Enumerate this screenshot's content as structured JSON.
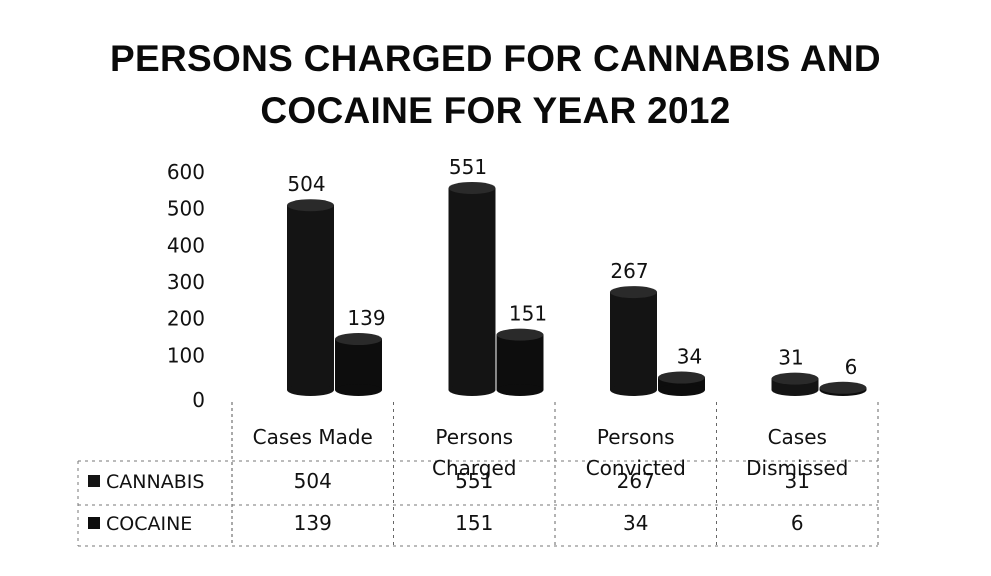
{
  "chart_data": {
    "type": "bar",
    "title_lines": [
      "PERSONS CHARGED FOR CANNABIS AND",
      "COCAINE FOR YEAR 2012"
    ],
    "categories": [
      [
        "Cases Made"
      ],
      [
        "Persons",
        "Charged"
      ],
      [
        "Persons",
        "Convicted"
      ],
      [
        "Cases",
        "Dismissed"
      ]
    ],
    "series": [
      {
        "name": "CANNABIS",
        "values": [
          504,
          551,
          267,
          31
        ],
        "color": "#141414"
      },
      {
        "name": "COCAINE",
        "values": [
          139,
          151,
          34,
          6
        ],
        "color": "#0d0d0d"
      }
    ],
    "y_ticks": [
      "0",
      "100",
      "200",
      "300",
      "400",
      "500",
      "600"
    ],
    "ylim": [
      0,
      600
    ],
    "bar_shape": "cylinder",
    "legend": "data table below chart",
    "grid": false
  }
}
